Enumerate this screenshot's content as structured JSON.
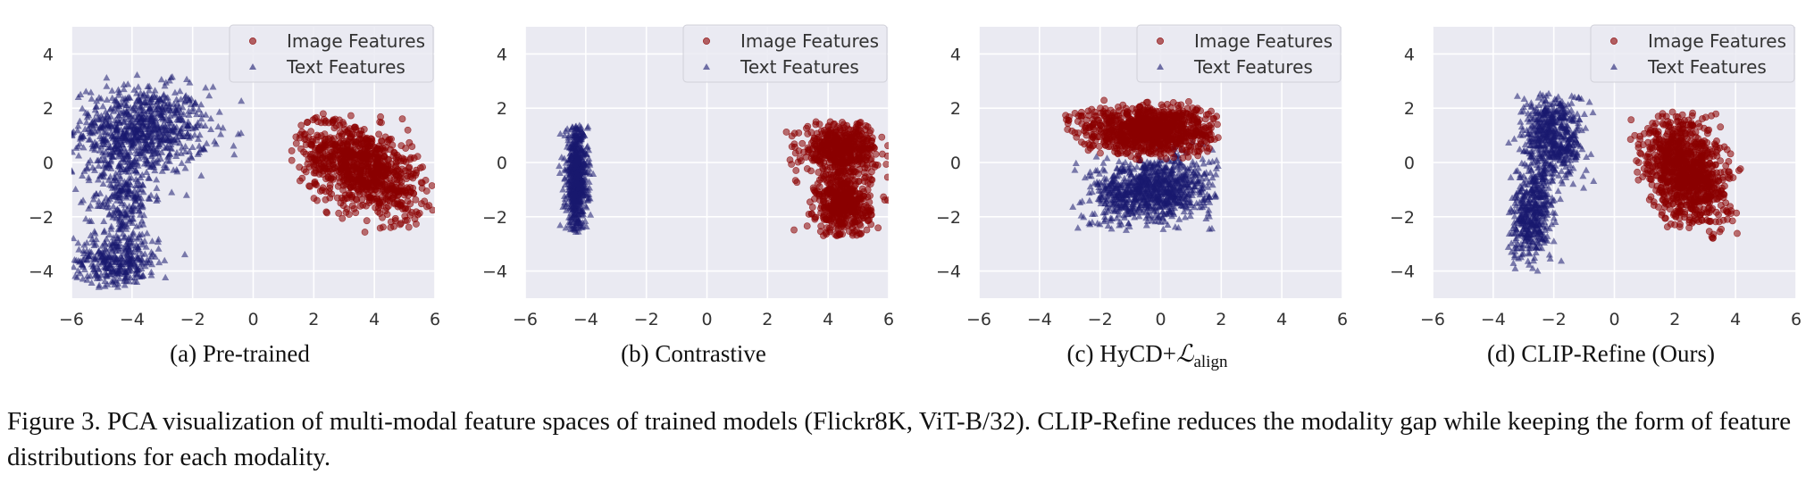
{
  "figure": {
    "caption": "Figure 3. PCA visualization of multi-modal feature spaces of trained models (Flickr8K, ViT-B/32). CLIP-Refine reduces the modality gap while keeping the form of feature distributions for each modality."
  },
  "style": {
    "image_color": "#8B0000",
    "text_color": "#191970",
    "plot_background": "#EAEAF2",
    "grid_color": "#FFFFFF"
  },
  "chart_data": [
    {
      "type": "scatter",
      "subcaption": "(a) Pre-trained",
      "xlim": [
        -6,
        6
      ],
      "ylim": [
        -5,
        5
      ],
      "xticks": [
        "−6",
        "−4",
        "−2",
        "0",
        "2",
        "4",
        "6"
      ],
      "yticks": [
        "4",
        "2",
        "0",
        "−2",
        "−4"
      ],
      "legend": {
        "position": "top-right",
        "entries": [
          "Image Features",
          "Text Features"
        ]
      },
      "series": [
        {
          "name": "Image Features",
          "marker": "circle",
          "clusters": [
            {
              "x": 3.6,
              "y": -0.2,
              "sx": 1.0,
              "sy": 0.9,
              "rho": -0.45,
              "n": 900
            }
          ],
          "range": {
            "x": [
              1.2,
              6.0
            ],
            "y": [
              -2.6,
              1.8
            ]
          }
        },
        {
          "name": "Text Features",
          "marker": "triangle",
          "clusters": [
            {
              "x": -3.7,
              "y": 1.2,
              "sx": 1.1,
              "sy": 0.8,
              "rho": 0.0,
              "n": 800
            },
            {
              "x": -4.3,
              "y": -1.2,
              "sx": 0.5,
              "sy": 0.9,
              "rho": 0.0,
              "n": 250
            },
            {
              "x": -4.5,
              "y": -3.6,
              "sx": 0.7,
              "sy": 0.5,
              "rho": 0.0,
              "n": 350
            }
          ],
          "range": {
            "x": [
              -6.0,
              2.0
            ],
            "y": [
              -4.6,
              3.4
            ]
          }
        }
      ]
    },
    {
      "type": "scatter",
      "subcaption": "(b) Contrastive",
      "xlim": [
        -6,
        6
      ],
      "ylim": [
        -5,
        5
      ],
      "xticks": [
        "−6",
        "−4",
        "−2",
        "0",
        "2",
        "4",
        "6"
      ],
      "yticks": [
        "4",
        "2",
        "0",
        "−2",
        "−4"
      ],
      "legend": {
        "position": "top-right",
        "entries": [
          "Image Features",
          "Text Features"
        ]
      },
      "series": [
        {
          "name": "Image Features",
          "marker": "circle",
          "clusters": [
            {
              "x": 4.4,
              "y": 0.5,
              "sx": 0.6,
              "sy": 0.5,
              "rho": 0.0,
              "n": 500
            },
            {
              "x": 4.5,
              "y": -1.6,
              "sx": 0.45,
              "sy": 0.6,
              "rho": 0.0,
              "n": 450
            }
          ],
          "range": {
            "x": [
              2.4,
              6.0
            ],
            "y": [
              -2.7,
              1.5
            ]
          }
        },
        {
          "name": "Text Features",
          "marker": "triangle",
          "clusters": [
            {
              "x": -4.3,
              "y": -0.6,
              "sx": 0.18,
              "sy": 1.0,
              "rho": 0.0,
              "n": 700
            }
          ],
          "range": {
            "x": [
              -4.9,
              -3.6
            ],
            "y": [
              -2.6,
              1.4
            ]
          }
        }
      ]
    },
    {
      "type": "scatter",
      "subcaption": "(c) HyCD+",
      "subcaption_math": "ℒ",
      "subcaption_sub": "align",
      "xlim": [
        -6,
        6
      ],
      "ylim": [
        -5,
        5
      ],
      "xticks": [
        "−6",
        "−4",
        "−2",
        "0",
        "2",
        "4",
        "6"
      ],
      "yticks": [
        "4",
        "2",
        "0",
        "−2",
        "−4"
      ],
      "legend": {
        "position": "top-right",
        "entries": [
          "Image Features",
          "Text Features"
        ]
      },
      "series": [
        {
          "name": "Image Features",
          "marker": "circle",
          "clusters": [
            {
              "x": -0.4,
              "y": 1.2,
              "sx": 1.1,
              "sy": 0.45,
              "rho": 0.0,
              "n": 950
            }
          ],
          "range": {
            "x": [
              -3.2,
              1.9
            ],
            "y": [
              0.0,
              2.3
            ]
          }
        },
        {
          "name": "Text Features",
          "marker": "triangle",
          "clusters": [
            {
              "x": -0.3,
              "y": -1.0,
              "sx": 1.0,
              "sy": 0.6,
              "rho": 0.15,
              "n": 950
            }
          ],
          "range": {
            "x": [
              -2.9,
              1.9
            ],
            "y": [
              -2.5,
              0.9
            ]
          }
        }
      ]
    },
    {
      "type": "scatter",
      "subcaption": "(d) CLIP-Refine (Ours)",
      "xlim": [
        -6,
        6
      ],
      "ylim": [
        -5,
        5
      ],
      "xticks": [
        "−6",
        "−4",
        "−2",
        "0",
        "2",
        "4",
        "6"
      ],
      "yticks": [
        "4",
        "2",
        "0",
        "−2",
        "−4"
      ],
      "legend": {
        "position": "top-right",
        "entries": [
          "Image Features",
          "Text Features"
        ]
      },
      "series": [
        {
          "name": "Image Features",
          "marker": "circle",
          "clusters": [
            {
              "x": 2.4,
              "y": -0.3,
              "sx": 0.7,
              "sy": 1.0,
              "rho": -0.3,
              "n": 950
            }
          ],
          "range": {
            "x": [
              0.5,
              4.2
            ],
            "y": [
              -2.8,
              1.9
            ]
          }
        },
        {
          "name": "Text Features",
          "marker": "triangle",
          "clusters": [
            {
              "x": -2.0,
              "y": 1.0,
              "sx": 0.5,
              "sy": 0.8,
              "rho": 0.0,
              "n": 550
            },
            {
              "x": -2.7,
              "y": -1.9,
              "sx": 0.35,
              "sy": 0.9,
              "rho": 0.3,
              "n": 450
            }
          ],
          "range": {
            "x": [
              -3.5,
              -0.6
            ],
            "y": [
              -4.1,
              2.6
            ]
          }
        }
      ]
    }
  ]
}
